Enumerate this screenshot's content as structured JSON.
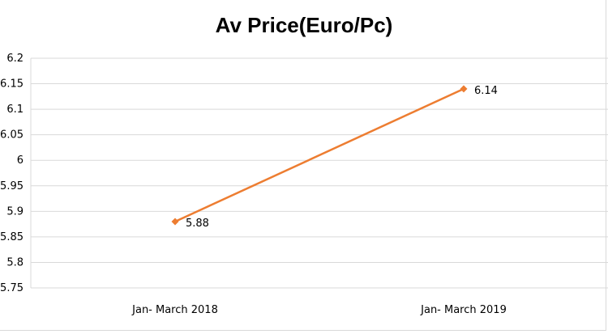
{
  "chart_data": {
    "type": "line",
    "title": "Av Price(Euro/Pc)",
    "xlabel": "",
    "ylabel": "",
    "categories": [
      "Jan- March 2018",
      "Jan- March 2019"
    ],
    "series": [
      {
        "values": [
          5.88,
          6.14
        ],
        "color": "#ed7d31",
        "marker": "diamond"
      }
    ],
    "data_labels": [
      "5.88",
      "6.14"
    ],
    "ylim": [
      5.75,
      6.2
    ],
    "yticks": [
      "5.75",
      "5.8",
      "5.85",
      "5.9",
      "5.95",
      "6",
      "6.05",
      "6.1",
      "6.15",
      "6.2"
    ],
    "grid": true,
    "legend": "none"
  }
}
